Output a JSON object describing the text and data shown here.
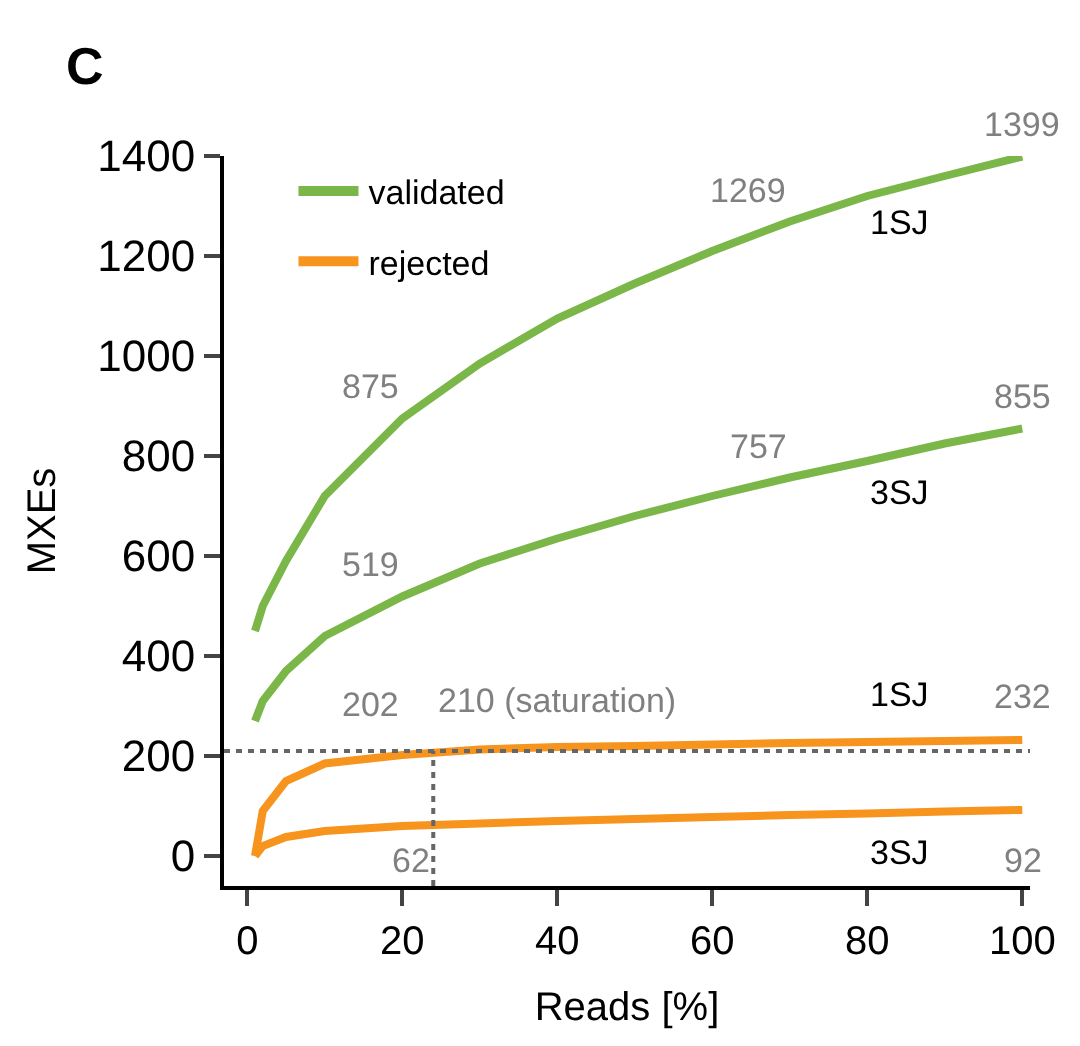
{
  "chart_data": {
    "type": "line",
    "xlabel": "Reads [%]",
    "ylabel": "MXEs",
    "x": [
      1,
      2,
      5,
      10,
      20,
      30,
      40,
      50,
      60,
      70,
      80,
      90,
      100
    ],
    "series": [
      {
        "name": "validated",
        "color": "#7ab648",
        "values": [
          450,
          500,
          590,
          720,
          875,
          985,
          1075,
          1145,
          1210,
          1269,
          1320,
          1360,
          1399
        ]
      },
      {
        "color": "#7ab648",
        "values": [
          270,
          310,
          370,
          440,
          519,
          585,
          635,
          680,
          720,
          757,
          790,
          825,
          855
        ]
      },
      {
        "name": "rejected",
        "color": "#f7941d",
        "values": [
          0,
          90,
          150,
          185,
          202,
          213,
          218,
          220,
          223,
          226,
          228,
          230,
          232
        ]
      },
      {
        "color": "#f7941d",
        "values": [
          0,
          20,
          38,
          50,
          60,
          65,
          70,
          74,
          78,
          82,
          85,
          89,
          92
        ]
      }
    ],
    "xlim": [
      -3,
      101
    ],
    "xticks": [
      0,
      20,
      40,
      60,
      80,
      100
    ],
    "ylim": [
      -60,
      1400
    ],
    "yticks": [
      0,
      200,
      400,
      600,
      800,
      1000,
      1200,
      1400
    ],
    "ref_lines": [
      {
        "axis": "y",
        "value": 210,
        "line_style": "dotted",
        "color": "#666666"
      },
      {
        "axis": "x",
        "value": 24,
        "line_style": "dotted",
        "color": "#666666"
      }
    ],
    "annotations": [
      "C",
      {
        "text": "875",
        "x": 20,
        "y": 875
      },
      {
        "text": "1269",
        "x": 70,
        "y": 1269
      },
      {
        "text": "1399",
        "x": 100,
        "y": 1399
      },
      {
        "text": "519",
        "x": 20,
        "y": 519
      },
      {
        "text": "757",
        "x": 70,
        "y": 757
      },
      {
        "text": "855",
        "x": 100,
        "y": 855
      },
      {
        "text": "202",
        "x": 20,
        "y": 202
      },
      {
        "text": "210 (saturation)",
        "x": 24,
        "y": 210
      },
      {
        "text": "232",
        "x": 100,
        "y": 232
      },
      {
        "text": "62",
        "x": 24,
        "y": 62
      },
      {
        "text": "92",
        "x": 100,
        "y": 92
      },
      {
        "text": "1SJ",
        "x": 84,
        "y": 1330
      },
      {
        "text": "3SJ",
        "x": 84,
        "y": 795
      },
      {
        "text": "1SJ",
        "x": 84,
        "y": 228
      },
      {
        "text": "3SJ",
        "x": 84,
        "y": 85
      }
    ],
    "legend": "top left",
    "marker": "none",
    "line_style": "solid"
  }
}
